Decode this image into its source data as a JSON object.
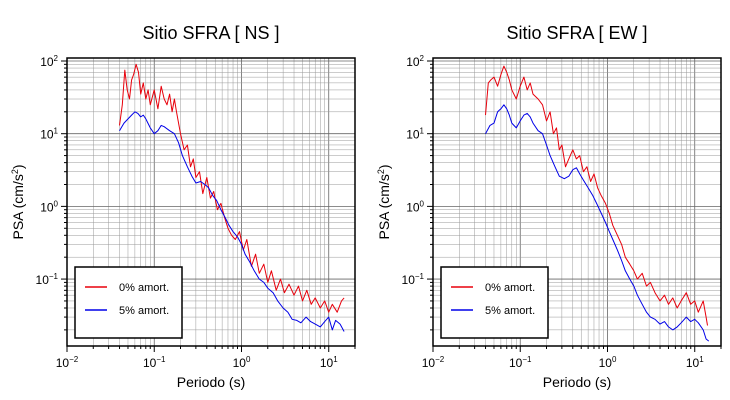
{
  "chart_data": [
    {
      "type": "line",
      "title": "Sitio SFRA [ NS ]",
      "xlabel": "Periodo (s)",
      "ylabel_text": "PSA (cm/s",
      "ylabel_sup": "2",
      "ylabel_close": ")",
      "xscale": "log",
      "yscale": "log",
      "xlim": [
        0.01,
        20
      ],
      "ylim": [
        0.012,
        110
      ],
      "x_ticks": [
        {
          "base": "10",
          "exp": "−2"
        },
        {
          "base": "10",
          "exp": "−1"
        },
        {
          "base": "10",
          "exp": "0"
        },
        {
          "base": "10",
          "exp": "1"
        }
      ],
      "y_ticks": [
        {
          "base": "10",
          "exp": "−1"
        },
        {
          "base": "10",
          "exp": "0"
        },
        {
          "base": "10",
          "exp": "1"
        },
        {
          "base": "10",
          "exp": "2"
        }
      ],
      "grid": true,
      "legend_position": "bottom-left",
      "series": [
        {
          "name": "0% amort.",
          "color": "#e8000b",
          "points": [
            [
              0.04,
              13
            ],
            [
              0.043,
              25
            ],
            [
              0.046,
              75
            ],
            [
              0.049,
              40
            ],
            [
              0.052,
              30
            ],
            [
              0.055,
              55
            ],
            [
              0.058,
              65
            ],
            [
              0.062,
              90
            ],
            [
              0.066,
              70
            ],
            [
              0.07,
              35
            ],
            [
              0.075,
              50
            ],
            [
              0.08,
              30
            ],
            [
              0.085,
              40
            ],
            [
              0.09,
              25
            ],
            [
              0.1,
              40
            ],
            [
              0.11,
              22
            ],
            [
              0.12,
              45
            ],
            [
              0.13,
              30
            ],
            [
              0.14,
              25
            ],
            [
              0.15,
              35
            ],
            [
              0.16,
              20
            ],
            [
              0.17,
              30
            ],
            [
              0.18,
              20
            ],
            [
              0.2,
              10
            ],
            [
              0.22,
              6
            ],
            [
              0.24,
              7
            ],
            [
              0.26,
              3.5
            ],
            [
              0.28,
              4.5
            ],
            [
              0.3,
              2.5
            ],
            [
              0.33,
              3
            ],
            [
              0.36,
              1.5
            ],
            [
              0.4,
              2.5
            ],
            [
              0.44,
              1.3
            ],
            [
              0.48,
              1.6
            ],
            [
              0.53,
              0.9
            ],
            [
              0.58,
              1.1
            ],
            [
              0.64,
              0.7
            ],
            [
              0.7,
              0.5
            ],
            [
              0.77,
              0.4
            ],
            [
              0.85,
              0.35
            ],
            [
              0.95,
              0.45
            ],
            [
              1.05,
              0.25
            ],
            [
              1.15,
              0.35
            ],
            [
              1.3,
              0.15
            ],
            [
              1.45,
              0.22
            ],
            [
              1.6,
              0.12
            ],
            [
              1.8,
              0.16
            ],
            [
              2.0,
              0.09
            ],
            [
              2.2,
              0.13
            ],
            [
              2.5,
              0.07
            ],
            [
              2.8,
              0.1
            ],
            [
              3.1,
              0.065
            ],
            [
              3.5,
              0.085
            ],
            [
              4.0,
              0.06
            ],
            [
              4.5,
              0.08
            ],
            [
              5.0,
              0.05
            ],
            [
              5.6,
              0.07
            ],
            [
              6.3,
              0.045
            ],
            [
              7.0,
              0.055
            ],
            [
              8.0,
              0.04
            ],
            [
              9.0,
              0.05
            ],
            [
              10,
              0.035
            ],
            [
              11,
              0.045
            ],
            [
              12.5,
              0.035
            ],
            [
              14,
              0.05
            ],
            [
              15,
              0.055
            ]
          ]
        },
        {
          "name": "5% amort.",
          "color": "#0000e8",
          "points": [
            [
              0.04,
              11
            ],
            [
              0.045,
              14
            ],
            [
              0.05,
              16
            ],
            [
              0.055,
              18
            ],
            [
              0.06,
              20
            ],
            [
              0.065,
              19
            ],
            [
              0.07,
              17
            ],
            [
              0.075,
              18
            ],
            [
              0.08,
              16
            ],
            [
              0.09,
              12
            ],
            [
              0.1,
              10
            ],
            [
              0.11,
              11
            ],
            [
              0.12,
              13
            ],
            [
              0.13,
              12.5
            ],
            [
              0.15,
              11
            ],
            [
              0.17,
              10
            ],
            [
              0.19,
              7.5
            ],
            [
              0.21,
              5
            ],
            [
              0.24,
              3.5
            ],
            [
              0.27,
              2.6
            ],
            [
              0.3,
              2.1
            ],
            [
              0.34,
              2.2
            ],
            [
              0.38,
              2
            ],
            [
              0.42,
              1.8
            ],
            [
              0.47,
              1.4
            ],
            [
              0.52,
              1.2
            ],
            [
              0.58,
              0.9
            ],
            [
              0.65,
              0.7
            ],
            [
              0.72,
              0.55
            ],
            [
              0.8,
              0.45
            ],
            [
              0.9,
              0.38
            ],
            [
              1.0,
              0.3
            ],
            [
              1.1,
              0.22
            ],
            [
              1.25,
              0.17
            ],
            [
              1.4,
              0.13
            ],
            [
              1.6,
              0.1
            ],
            [
              1.8,
              0.09
            ],
            [
              2.0,
              0.075
            ],
            [
              2.3,
              0.065
            ],
            [
              2.6,
              0.05
            ],
            [
              3.0,
              0.04
            ],
            [
              3.4,
              0.035
            ],
            [
              3.8,
              0.028
            ],
            [
              4.3,
              0.027
            ],
            [
              4.8,
              0.025
            ],
            [
              5.5,
              0.03
            ],
            [
              6.2,
              0.026
            ],
            [
              7.0,
              0.024
            ],
            [
              8.0,
              0.022
            ],
            [
              9.0,
              0.026
            ],
            [
              10,
              0.03
            ],
            [
              11,
              0.02
            ],
            [
              12,
              0.027
            ],
            [
              13.5,
              0.024
            ],
            [
              15,
              0.019
            ]
          ]
        }
      ]
    },
    {
      "type": "line",
      "title": "Sitio SFRA [ EW ]",
      "xlabel": "Periodo (s)",
      "ylabel_text": "PSA (cm/s",
      "ylabel_sup": "2",
      "ylabel_close": ")",
      "xscale": "log",
      "yscale": "log",
      "xlim": [
        0.01,
        20
      ],
      "ylim": [
        0.012,
        110
      ],
      "x_ticks": [
        {
          "base": "10",
          "exp": "−2"
        },
        {
          "base": "10",
          "exp": "−1"
        },
        {
          "base": "10",
          "exp": "0"
        },
        {
          "base": "10",
          "exp": "1"
        }
      ],
      "y_ticks": [
        {
          "base": "10",
          "exp": "−1"
        },
        {
          "base": "10",
          "exp": "0"
        },
        {
          "base": "10",
          "exp": "1"
        },
        {
          "base": "10",
          "exp": "2"
        }
      ],
      "grid": true,
      "legend_position": "bottom-left",
      "series": [
        {
          "name": "0% amort.",
          "color": "#e8000b",
          "points": [
            [
              0.04,
              18
            ],
            [
              0.043,
              50
            ],
            [
              0.046,
              55
            ],
            [
              0.05,
              60
            ],
            [
              0.055,
              45
            ],
            [
              0.06,
              65
            ],
            [
              0.065,
              85
            ],
            [
              0.07,
              70
            ],
            [
              0.075,
              55
            ],
            [
              0.08,
              40
            ],
            [
              0.09,
              30
            ],
            [
              0.1,
              45
            ],
            [
              0.11,
              60
            ],
            [
              0.12,
              40
            ],
            [
              0.13,
              50
            ],
            [
              0.14,
              35
            ],
            [
              0.16,
              30
            ],
            [
              0.18,
              25
            ],
            [
              0.2,
              15
            ],
            [
              0.22,
              20
            ],
            [
              0.24,
              10
            ],
            [
              0.26,
              12
            ],
            [
              0.28,
              6
            ],
            [
              0.3,
              7
            ],
            [
              0.33,
              3.5
            ],
            [
              0.36,
              4.5
            ],
            [
              0.4,
              6
            ],
            [
              0.44,
              4.5
            ],
            [
              0.48,
              5
            ],
            [
              0.53,
              3
            ],
            [
              0.58,
              3.5
            ],
            [
              0.64,
              2.2
            ],
            [
              0.7,
              2.8
            ],
            [
              0.77,
              1.8
            ],
            [
              0.85,
              1.4
            ],
            [
              0.95,
              1.1
            ],
            [
              1.05,
              0.8
            ],
            [
              1.15,
              0.55
            ],
            [
              1.3,
              0.4
            ],
            [
              1.45,
              0.3
            ],
            [
              1.6,
              0.2
            ],
            [
              1.8,
              0.16
            ],
            [
              2.0,
              0.13
            ],
            [
              2.2,
              0.1
            ],
            [
              2.5,
              0.12
            ],
            [
              2.8,
              0.08
            ],
            [
              3.1,
              0.09
            ],
            [
              3.5,
              0.065
            ],
            [
              4.0,
              0.05
            ],
            [
              4.5,
              0.06
            ],
            [
              5.0,
              0.045
            ],
            [
              5.6,
              0.055
            ],
            [
              6.3,
              0.04
            ],
            [
              7.0,
              0.05
            ],
            [
              8.0,
              0.065
            ],
            [
              9.0,
              0.045
            ],
            [
              10,
              0.05
            ],
            [
              11,
              0.035
            ],
            [
              12.5,
              0.05
            ],
            [
              13.5,
              0.03
            ],
            [
              14,
              0.023
            ]
          ]
        },
        {
          "name": "5% amort.",
          "color": "#0000e8",
          "points": [
            [
              0.04,
              10
            ],
            [
              0.045,
              13
            ],
            [
              0.05,
              14
            ],
            [
              0.055,
              20
            ],
            [
              0.06,
              22
            ],
            [
              0.065,
              25
            ],
            [
              0.07,
              22
            ],
            [
              0.075,
              18
            ],
            [
              0.08,
              14
            ],
            [
              0.09,
              12
            ],
            [
              0.1,
              15
            ],
            [
              0.11,
              18
            ],
            [
              0.12,
              19
            ],
            [
              0.13,
              17
            ],
            [
              0.14,
              14
            ],
            [
              0.16,
              11
            ],
            [
              0.18,
              10
            ],
            [
              0.2,
              7
            ],
            [
              0.22,
              5
            ],
            [
              0.25,
              3.5
            ],
            [
              0.28,
              2.6
            ],
            [
              0.32,
              2.4
            ],
            [
              0.36,
              2.6
            ],
            [
              0.4,
              3.2
            ],
            [
              0.44,
              3.4
            ],
            [
              0.48,
              2.8
            ],
            [
              0.53,
              2.3
            ],
            [
              0.6,
              1.8
            ],
            [
              0.68,
              1.4
            ],
            [
              0.75,
              1.1
            ],
            [
              0.85,
              0.8
            ],
            [
              0.95,
              0.6
            ],
            [
              1.05,
              0.45
            ],
            [
              1.15,
              0.35
            ],
            [
              1.3,
              0.25
            ],
            [
              1.45,
              0.18
            ],
            [
              1.6,
              0.13
            ],
            [
              1.8,
              0.1
            ],
            [
              2.0,
              0.08
            ],
            [
              2.2,
              0.06
            ],
            [
              2.5,
              0.045
            ],
            [
              2.8,
              0.035
            ],
            [
              3.1,
              0.03
            ],
            [
              3.5,
              0.028
            ],
            [
              4.0,
              0.024
            ],
            [
              4.5,
              0.026
            ],
            [
              5.0,
              0.022
            ],
            [
              5.6,
              0.02
            ],
            [
              6.3,
              0.022
            ],
            [
              7.0,
              0.025
            ],
            [
              8.0,
              0.03
            ],
            [
              9.0,
              0.026
            ],
            [
              10,
              0.028
            ],
            [
              11,
              0.025
            ],
            [
              12.5,
              0.02
            ],
            [
              13.5,
              0.015
            ],
            [
              14.5,
              0.014
            ]
          ]
        }
      ]
    }
  ]
}
